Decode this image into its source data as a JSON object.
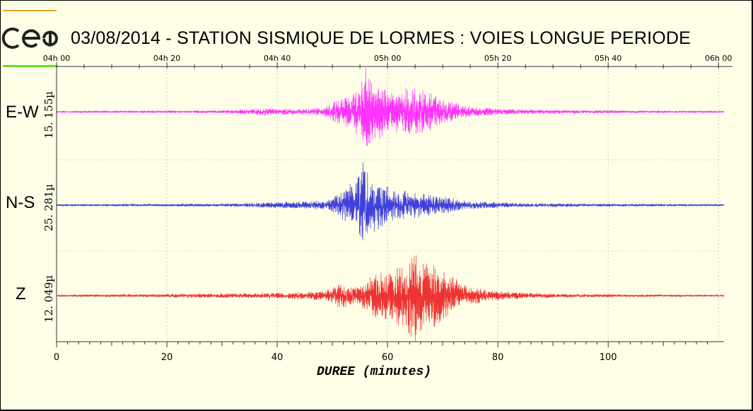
{
  "chart_data": {
    "type": "line",
    "title": "03/08/2014  -  STATION SISMIQUE DE LORMES : VOIES LONGUE PERIODE",
    "xlabel": "DUREE (minutes)",
    "xlim": [
      0,
      121
    ],
    "x_ticks": [
      "0",
      "20",
      "40",
      "60",
      "80",
      "100"
    ],
    "top_ticks": [
      "04h 00",
      "04h 20",
      "04h 40",
      "05h 00",
      "05h 20",
      "05h 40",
      "06h 00"
    ],
    "grid": true,
    "series": [
      {
        "name": "E-W",
        "scale": "15. 155µ",
        "color": "#ff33ff",
        "envelope": [
          [
            0,
            0.02
          ],
          [
            30,
            0.03
          ],
          [
            38,
            0.08
          ],
          [
            44,
            0.06
          ],
          [
            48,
            0.1
          ],
          [
            50,
            0.2
          ],
          [
            53,
            0.35
          ],
          [
            55,
            0.6
          ],
          [
            56.2,
            1.0
          ],
          [
            57,
            0.7
          ],
          [
            59,
            0.55
          ],
          [
            61,
            0.45
          ],
          [
            64,
            0.55
          ],
          [
            66,
            0.5
          ],
          [
            70,
            0.25
          ],
          [
            75,
            0.12
          ],
          [
            80,
            0.07
          ],
          [
            90,
            0.04
          ],
          [
            100,
            0.03
          ],
          [
            121,
            0.02
          ]
        ]
      },
      {
        "name": "N-S",
        "scale": "25. 281µ",
        "color": "#4040dd",
        "envelope": [
          [
            0,
            0.02
          ],
          [
            30,
            0.03
          ],
          [
            38,
            0.06
          ],
          [
            46,
            0.08
          ],
          [
            49,
            0.1
          ],
          [
            52,
            0.3
          ],
          [
            54,
            0.5
          ],
          [
            56,
            1.0
          ],
          [
            57,
            0.6
          ],
          [
            59,
            0.45
          ],
          [
            62,
            0.3
          ],
          [
            66,
            0.25
          ],
          [
            70,
            0.18
          ],
          [
            75,
            0.08
          ],
          [
            85,
            0.04
          ],
          [
            100,
            0.03
          ],
          [
            121,
            0.02
          ]
        ]
      },
      {
        "name": "Z",
        "scale": "12. 049µ",
        "color": "#ee3333",
        "envelope": [
          [
            0,
            0.02
          ],
          [
            30,
            0.05
          ],
          [
            38,
            0.06
          ],
          [
            45,
            0.08
          ],
          [
            49,
            0.12
          ],
          [
            51,
            0.28
          ],
          [
            54,
            0.2
          ],
          [
            56,
            0.3
          ],
          [
            58,
            0.5
          ],
          [
            61,
            0.6
          ],
          [
            63,
            0.7
          ],
          [
            65,
            1.0
          ],
          [
            67,
            0.75
          ],
          [
            70,
            0.6
          ],
          [
            73,
            0.3
          ],
          [
            77,
            0.15
          ],
          [
            82,
            0.08
          ],
          [
            90,
            0.05
          ],
          [
            100,
            0.03
          ],
          [
            121,
            0.02
          ]
        ]
      }
    ]
  }
}
